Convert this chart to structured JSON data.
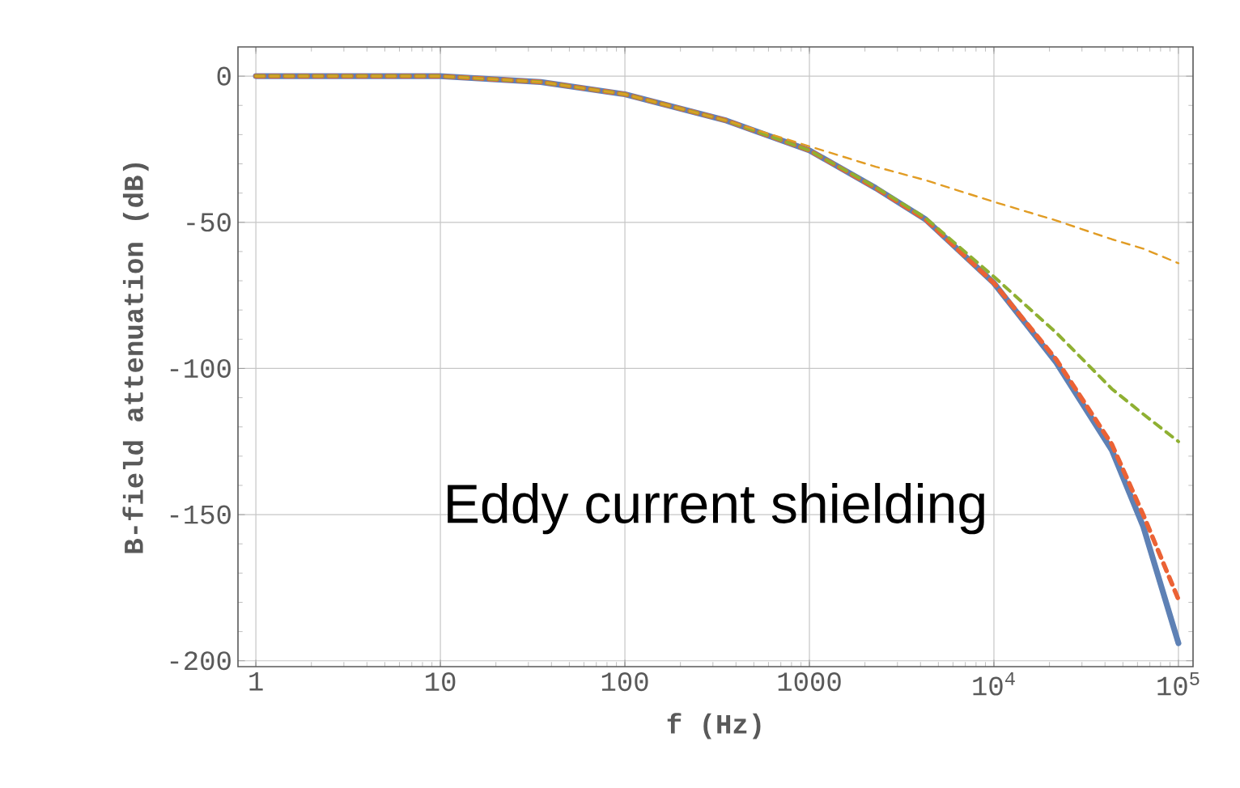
{
  "chart_data": {
    "type": "line",
    "xlabel": "f (Hz)",
    "ylabel": "B-field attenuation (dB)",
    "annotations": [
      "Eddy current shielding"
    ],
    "x": [
      1,
      10,
      35,
      100,
      355,
      1000,
      2290,
      4260,
      10000,
      21800,
      43600,
      64400,
      100000
    ],
    "series": [
      {
        "color": "#5e81b5",
        "line_style": "solid",
        "values": [
          0,
          0,
          -2,
          -6.2,
          -15.2,
          -25.4,
          -38.3,
          -49,
          -70.8,
          -98,
          -128,
          -154,
          -194
        ]
      },
      {
        "color": "#eb6235",
        "line_style": "dashed",
        "values": [
          0,
          0,
          -2,
          -6.2,
          -15.2,
          -25.4,
          -38.3,
          -49,
          -70.8,
          -97,
          -126,
          -150,
          -179
        ]
      },
      {
        "color": "#8fb032",
        "line_style": "dashed",
        "values": [
          0,
          0,
          -2,
          -6.2,
          -15.2,
          -25.4,
          -38,
          -48.5,
          -68.6,
          -87.8,
          -107,
          -115.6,
          -125
        ]
      },
      {
        "color": "#e19c24",
        "line_style": "dashed",
        "values": [
          0,
          0,
          -2,
          -6.2,
          -15.2,
          -24,
          -31,
          -35.6,
          -43,
          -49.4,
          -55.8,
          -59,
          -64
        ]
      }
    ],
    "log": "x",
    "grid": true,
    "marker": "none",
    "xlim": [
      0.8,
      120000
    ],
    "ylim": [
      -202,
      10
    ],
    "xticks": [
      1,
      10,
      100,
      1000,
      {
        "value": 10000,
        "label": "10$^{4}$"
      },
      {
        "value": 100000,
        "label": "10$^{5}$"
      }
    ],
    "yticks": [
      0,
      -50,
      -100,
      -150,
      -200
    ]
  }
}
